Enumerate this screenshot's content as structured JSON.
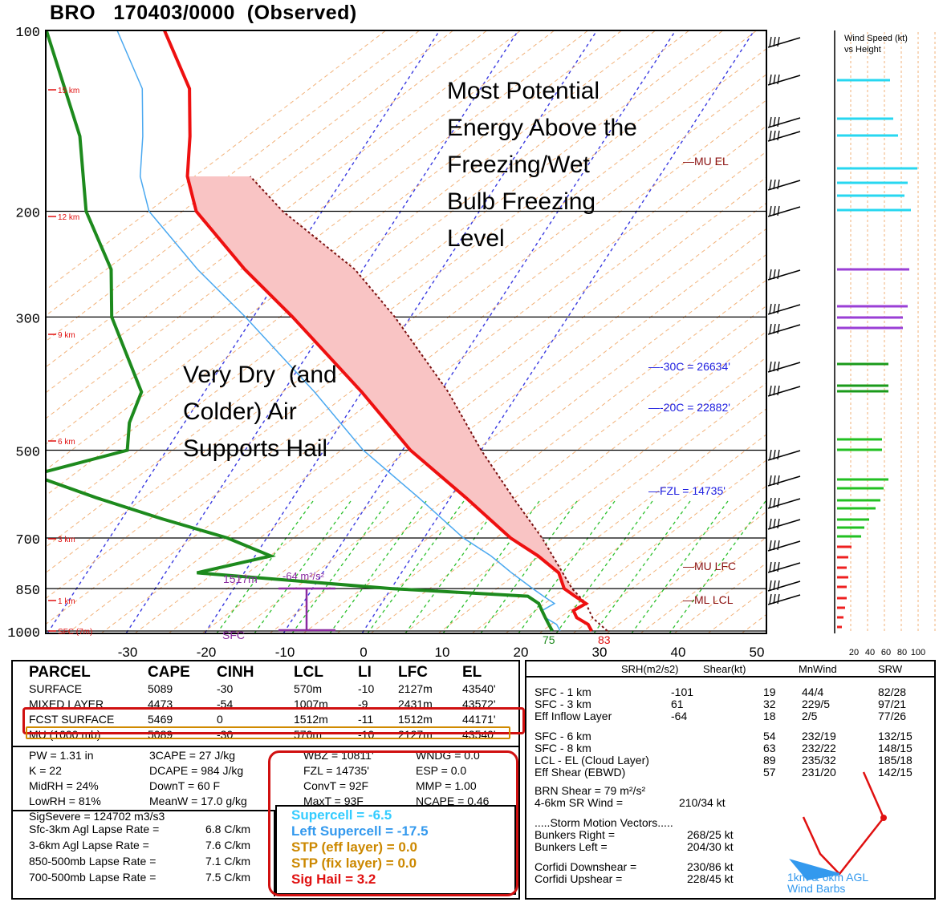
{
  "header": {
    "title": "BRO   170403/0000  (Observed)"
  },
  "chart_data": {
    "type": "skew-t log-p sounding",
    "pressure_axis": {
      "ticks": [
        100,
        200,
        300,
        500,
        700,
        850,
        1000
      ],
      "scale": "log"
    },
    "temperature_axis": {
      "ticks": [
        -30,
        -20,
        -10,
        0,
        10,
        20,
        30,
        40,
        50
      ],
      "labels": [
        "-30",
        "-20",
        "-10",
        "0",
        "10",
        "20",
        "30",
        "40",
        "50"
      ],
      "units": "C"
    },
    "height_labels": [
      "15 km",
      "12 km",
      "9 km",
      "6 km",
      "3 km",
      "1 km",
      "SFC (7m)"
    ],
    "temperature_profile": [
      {
        "p": 1000,
        "t": 29
      },
      {
        "p": 975,
        "t": 28
      },
      {
        "p": 950,
        "t": 26
      },
      {
        "p": 925,
        "t": 25
      },
      {
        "p": 900,
        "t": 26
      },
      {
        "p": 875,
        "t": 24
      },
      {
        "p": 850,
        "t": 22
      },
      {
        "p": 800,
        "t": 20
      },
      {
        "p": 750,
        "t": 16
      },
      {
        "p": 700,
        "t": 11
      },
      {
        "p": 600,
        "t": 2
      },
      {
        "p": 500,
        "t": -9
      },
      {
        "p": 400,
        "t": -20
      },
      {
        "p": 300,
        "t": -35
      },
      {
        "p": 250,
        "t": -45
      },
      {
        "p": 200,
        "t": -56
      },
      {
        "p": 175,
        "t": -60
      },
      {
        "p": 150,
        "t": -63
      },
      {
        "p": 125,
        "t": -67
      },
      {
        "p": 100,
        "t": -75
      }
    ],
    "dewpoint_profile": [
      {
        "p": 1000,
        "t": 24
      },
      {
        "p": 975,
        "t": 23
      },
      {
        "p": 950,
        "t": 22
      },
      {
        "p": 925,
        "t": 21
      },
      {
        "p": 900,
        "t": 20
      },
      {
        "p": 875,
        "t": 18
      },
      {
        "p": 850,
        "t": 0
      },
      {
        "p": 800,
        "t": -26
      },
      {
        "p": 750,
        "t": -18
      },
      {
        "p": 700,
        "t": -25
      },
      {
        "p": 650,
        "t": -35
      },
      {
        "p": 600,
        "t": -45
      },
      {
        "p": 550,
        "t": -55
      },
      {
        "p": 500,
        "t": -45
      },
      {
        "p": 450,
        "t": -47
      },
      {
        "p": 400,
        "t": -48
      },
      {
        "p": 300,
        "t": -58
      },
      {
        "p": 250,
        "t": -62
      },
      {
        "p": 200,
        "t": -70
      },
      {
        "p": 150,
        "t": -77
      },
      {
        "p": 100,
        "t": -90
      }
    ],
    "parcel_profile": [
      {
        "p": 1000,
        "t": 31
      },
      {
        "p": 950,
        "t": 28
      },
      {
        "p": 900,
        "t": 26
      },
      {
        "p": 850,
        "t": 23
      },
      {
        "p": 700,
        "t": 15
      },
      {
        "p": 600,
        "t": 8
      },
      {
        "p": 500,
        "t": 0
      },
      {
        "p": 400,
        "t": -9
      },
      {
        "p": 300,
        "t": -22
      },
      {
        "p": 250,
        "t": -31
      },
      {
        "p": 200,
        "t": -45
      },
      {
        "p": 175,
        "t": -52
      }
    ],
    "levels": {
      "mu_el": "MU  EL",
      "mu_lfc": "MU  LFC",
      "ml_lcl": "ML  LCL",
      "m30c": "-30C = 26634'",
      "m20c": "-20C = 22882'",
      "fzl": "FZL = 14735'"
    },
    "inflow": {
      "top": "1517m",
      "srh": "-64 m²/s²",
      "sfc": "SFC"
    },
    "surface_labels": {
      "t": "75",
      "t_right": "83"
    },
    "wind_profile_title": "Wind Speed (kt)\nvs Height",
    "wind_profile_ticks": [
      "20",
      "40",
      "60",
      "80",
      "100"
    ],
    "wind_profile_bars": [
      {
        "y": 100,
        "len": 66,
        "color": "#27d7f0"
      },
      {
        "y": 148,
        "len": 70,
        "color": "#27d7f0"
      },
      {
        "y": 169,
        "len": 76,
        "color": "#27d7f0"
      },
      {
        "y": 210,
        "len": 100,
        "color": "#27d7f0"
      },
      {
        "y": 228,
        "len": 88,
        "color": "#27d7f0"
      },
      {
        "y": 244,
        "len": 84,
        "color": "#27d7f0"
      },
      {
        "y": 262,
        "len": 92,
        "color": "#27d7f0"
      },
      {
        "y": 336,
        "len": 90,
        "color": "#9a3fd6"
      },
      {
        "y": 382,
        "len": 88,
        "color": "#9a3fd6"
      },
      {
        "y": 396,
        "len": 82,
        "color": "#9a3fd6"
      },
      {
        "y": 409,
        "len": 82,
        "color": "#9a3fd6"
      },
      {
        "y": 454,
        "len": 64,
        "color": "#1a9a1a"
      },
      {
        "y": 481,
        "len": 64,
        "color": "#1a9a1a"
      },
      {
        "y": 488,
        "len": 64,
        "color": "#1a9a1a"
      },
      {
        "y": 548,
        "len": 56,
        "color": "#22c022"
      },
      {
        "y": 561,
        "len": 56,
        "color": "#22c022"
      },
      {
        "y": 598,
        "len": 64,
        "color": "#22c022"
      },
      {
        "y": 609,
        "len": 58,
        "color": "#22c022"
      },
      {
        "y": 624,
        "len": 54,
        "color": "#22c022"
      },
      {
        "y": 634,
        "len": 48,
        "color": "#22c022"
      },
      {
        "y": 648,
        "len": 40,
        "color": "#22c022"
      },
      {
        "y": 658,
        "len": 34,
        "color": "#22c022"
      },
      {
        "y": 669,
        "len": 30,
        "color": "#22c022"
      },
      {
        "y": 682,
        "len": 18,
        "color": "#ee2020"
      },
      {
        "y": 695,
        "len": 14,
        "color": "#ee2020"
      },
      {
        "y": 708,
        "len": 12,
        "color": "#ee2020"
      },
      {
        "y": 720,
        "len": 14,
        "color": "#ee2020"
      },
      {
        "y": 732,
        "len": 12,
        "color": "#ee2020"
      },
      {
        "y": 746,
        "len": 12,
        "color": "#ee2020"
      },
      {
        "y": 758,
        "len": 10,
        "color": "#ee2020"
      },
      {
        "y": 770,
        "len": 8,
        "color": "#ee2020"
      },
      {
        "y": 782,
        "len": 6,
        "color": "#ee2020"
      }
    ]
  },
  "annotations": {
    "upper": "Most Potential\nEnergy Above the\nFreezing/Wet\nBulb Freezing\nLevel",
    "lower": "Very Dry  (and\nColder) Air\nSupports Hail"
  },
  "parcel_table": {
    "headers": [
      "PARCEL",
      "CAPE",
      "CINH",
      "LCL",
      "LI",
      "LFC",
      "EL"
    ],
    "rows": [
      [
        "SURFACE",
        "5089",
        "-30",
        "570m",
        "-10",
        "2127m",
        "43540'"
      ],
      [
        "MIXED LAYER",
        "4473",
        "-54",
        "1007m",
        "-9",
        "2431m",
        "43572'"
      ],
      [
        "FCST SURFACE",
        "5469",
        "0",
        "1512m",
        "-11",
        "1512m",
        "44171'"
      ],
      [
        "MU   (1000 mb)",
        "5089",
        "-30",
        "570m",
        "-10",
        "2127m",
        "43540'"
      ]
    ]
  },
  "thermo": {
    "col1": [
      "PW = 1.31 in",
      "K = 22",
      "MidRH = 24%",
      "LowRH = 81%",
      "SigSevere = 124702 m3/s3"
    ],
    "col2": [
      "3CAPE = 27 J/kg",
      "DCAPE = 984 J/kg",
      "DownT = 60 F",
      "MeanW = 17.0 g/kg"
    ],
    "col3": [
      "WBZ = 10811'",
      "FZL = 14735'",
      "ConvT = 92F",
      "MaxT = 93F"
    ],
    "col4": [
      "WNDG = 0.0",
      "ESP = 0.0",
      "MMP = 1.00",
      "NCAPE = 0.46"
    ],
    "lapse": [
      [
        "Sfc-3km Agl Lapse Rate =",
        "6.8 C/km"
      ],
      [
        "3-6km Agl Lapse Rate =",
        "7.6 C/km"
      ],
      [
        "850-500mb Lapse Rate =",
        "7.1 C/km"
      ],
      [
        "700-500mb Lapse Rate =",
        "7.5 C/km"
      ]
    ]
  },
  "indices": [
    {
      "text": "Supercell = -6.5",
      "color": "#33ccff"
    },
    {
      "text": "Left Supercell = -17.5",
      "color": "#3399ee"
    },
    {
      "text": "STP (eff layer) = 0.0",
      "color": "#cc8800"
    },
    {
      "text": "STP (fix layer) = 0.0",
      "color": "#cc8800"
    },
    {
      "text": "Sig Hail = 3.2",
      "color": "#e01010"
    }
  ],
  "kinematics": {
    "headers": [
      "SRH(m2/s2)",
      "Shear(kt)",
      "MnWind",
      "SRW"
    ],
    "group1": [
      [
        "SFC - 1 km",
        "-101",
        "19",
        "44/4",
        "82/28"
      ],
      [
        "SFC - 3 km",
        "61",
        "32",
        "229/5",
        "97/21"
      ],
      [
        "Eff Inflow Layer",
        "-64",
        "18",
        "2/5",
        "77/26"
      ]
    ],
    "group2": [
      [
        "SFC - 6 km",
        "",
        "54",
        "232/19",
        "132/15"
      ],
      [
        "SFC - 8 km",
        "",
        "63",
        "232/22",
        "148/15"
      ],
      [
        "LCL - EL (Cloud Layer)",
        "",
        "89",
        "235/32",
        "185/18"
      ],
      [
        "Eff Shear (EBWD)",
        "",
        "57",
        "231/20",
        "142/15"
      ]
    ],
    "brn_shear": "BRN Shear =  79 m²/s²",
    "sr_wind_label": "4-6km SR Wind =",
    "sr_wind_value": "210/34 kt",
    "storm_motion_title": ".....Storm Motion Vectors.....",
    "storm_motion": [
      [
        "Bunkers Right =",
        "268/25 kt"
      ],
      [
        "Bunkers Left =",
        "204/30 kt"
      ],
      [
        "Corfidi Downshear =",
        "230/86 kt"
      ],
      [
        "Corfidi Upshear =",
        "228/45 kt"
      ]
    ],
    "hodo_label": "1km & 6km AGL\nWind Barbs"
  }
}
